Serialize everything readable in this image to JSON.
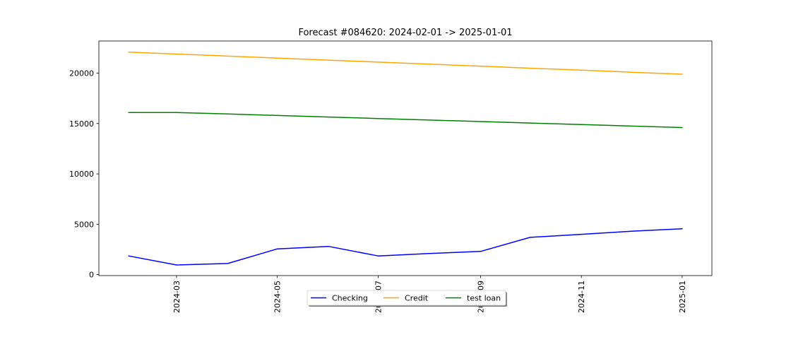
{
  "chart_data": {
    "type": "line",
    "title": "Forecast #084620: 2024-02-01 -> 2025-01-01",
    "xlabel": "",
    "ylabel": "",
    "x": [
      "2024-02-01",
      "2024-03-01",
      "2024-04-01",
      "2024-05-01",
      "2024-06-01",
      "2024-07-01",
      "2024-08-01",
      "2024-09-01",
      "2024-10-01",
      "2024-11-01",
      "2024-12-01",
      "2025-01-01"
    ],
    "xlim": [
      "2024-01-14",
      "2025-01-19"
    ],
    "ylim": [
      -100,
      23200
    ],
    "xticks": [
      {
        "value": "2024-03-01",
        "label": "2024-03"
      },
      {
        "value": "2024-05-01",
        "label": "2024-05"
      },
      {
        "value": "2024-07-01",
        "label": "2024-07"
      },
      {
        "value": "2024-09-01",
        "label": "2024-09"
      },
      {
        "value": "2024-11-01",
        "label": "2024-11"
      },
      {
        "value": "2025-01-01",
        "label": "2025-01"
      }
    ],
    "yticks": [
      {
        "value": 0,
        "label": "0"
      },
      {
        "value": 5000,
        "label": "5000"
      },
      {
        "value": 10000,
        "label": "10000"
      },
      {
        "value": 15000,
        "label": "15000"
      },
      {
        "value": 20000,
        "label": "20000"
      }
    ],
    "grid": false,
    "legend_position": "bottom-center",
    "series": [
      {
        "name": "Checking",
        "color": "#0000ff",
        "values": [
          1850,
          950,
          1100,
          2550,
          2800,
          1850,
          2100,
          2300,
          3700,
          4000,
          4300,
          4550
        ]
      },
      {
        "name": "Credit",
        "color": "#ffa500",
        "values": [
          22100,
          21900,
          21700,
          21500,
          21300,
          21100,
          20900,
          20700,
          20500,
          20300,
          20100,
          19900
        ]
      },
      {
        "name": "test loan",
        "color": "#008000",
        "values": [
          16100,
          16100,
          15950,
          15800,
          15650,
          15500,
          15350,
          15200,
          15050,
          14900,
          14750,
          14600
        ]
      }
    ]
  }
}
